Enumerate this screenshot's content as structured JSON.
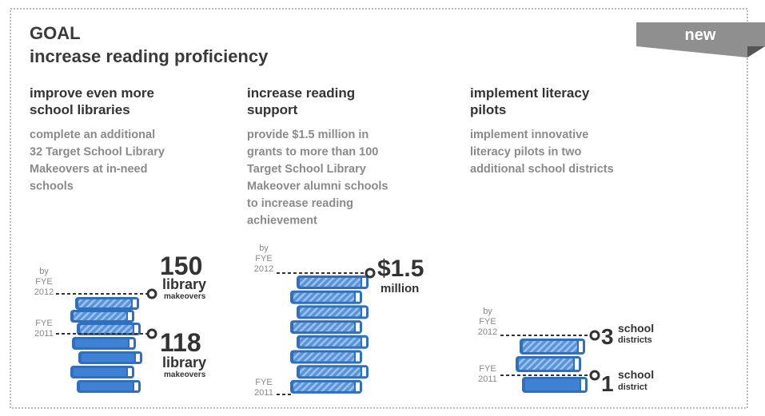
{
  "header": {
    "title": "GOAL",
    "subtitle": "increase reading proficiency",
    "badge": "new"
  },
  "columns": [
    {
      "heading": [
        "improve even more",
        "school libraries"
      ],
      "body": [
        "complete an additional",
        "32 Target School Library",
        "Makeovers at in-need",
        "schools"
      ],
      "target": {
        "by": "by",
        "fye": "FYE",
        "year": "2012",
        "number": "150",
        "unit": "library",
        "unit_small": "makeovers"
      },
      "baseline": {
        "fye": "FYE",
        "year": "2011",
        "number": "118",
        "unit": "library",
        "unit_small": "makeovers"
      }
    },
    {
      "heading": [
        "increase reading",
        "support"
      ],
      "body": [
        "provide $1.5 million in",
        "grants to more than 100",
        "Target School Library",
        "Makeover alumni schools",
        "to increase reading",
        "achievement"
      ],
      "target": {
        "by": "by",
        "fye": "FYE",
        "year": "2012",
        "number": "$1.5",
        "unit": "million"
      },
      "baseline": {
        "fye": "FYE",
        "year": "2011"
      }
    },
    {
      "heading": [
        "implement literacy",
        "pilots"
      ],
      "body": [
        "implement innovative",
        "literacy pilots in two",
        "additional school districts"
      ],
      "target": {
        "by": "by",
        "fye": "FYE",
        "year": "2012",
        "number": "3",
        "unit": "school",
        "unit_small": "districts"
      },
      "baseline": {
        "fye": "FYE",
        "year": "2011",
        "number": "1",
        "unit": "school",
        "unit_small": "district"
      }
    }
  ]
}
